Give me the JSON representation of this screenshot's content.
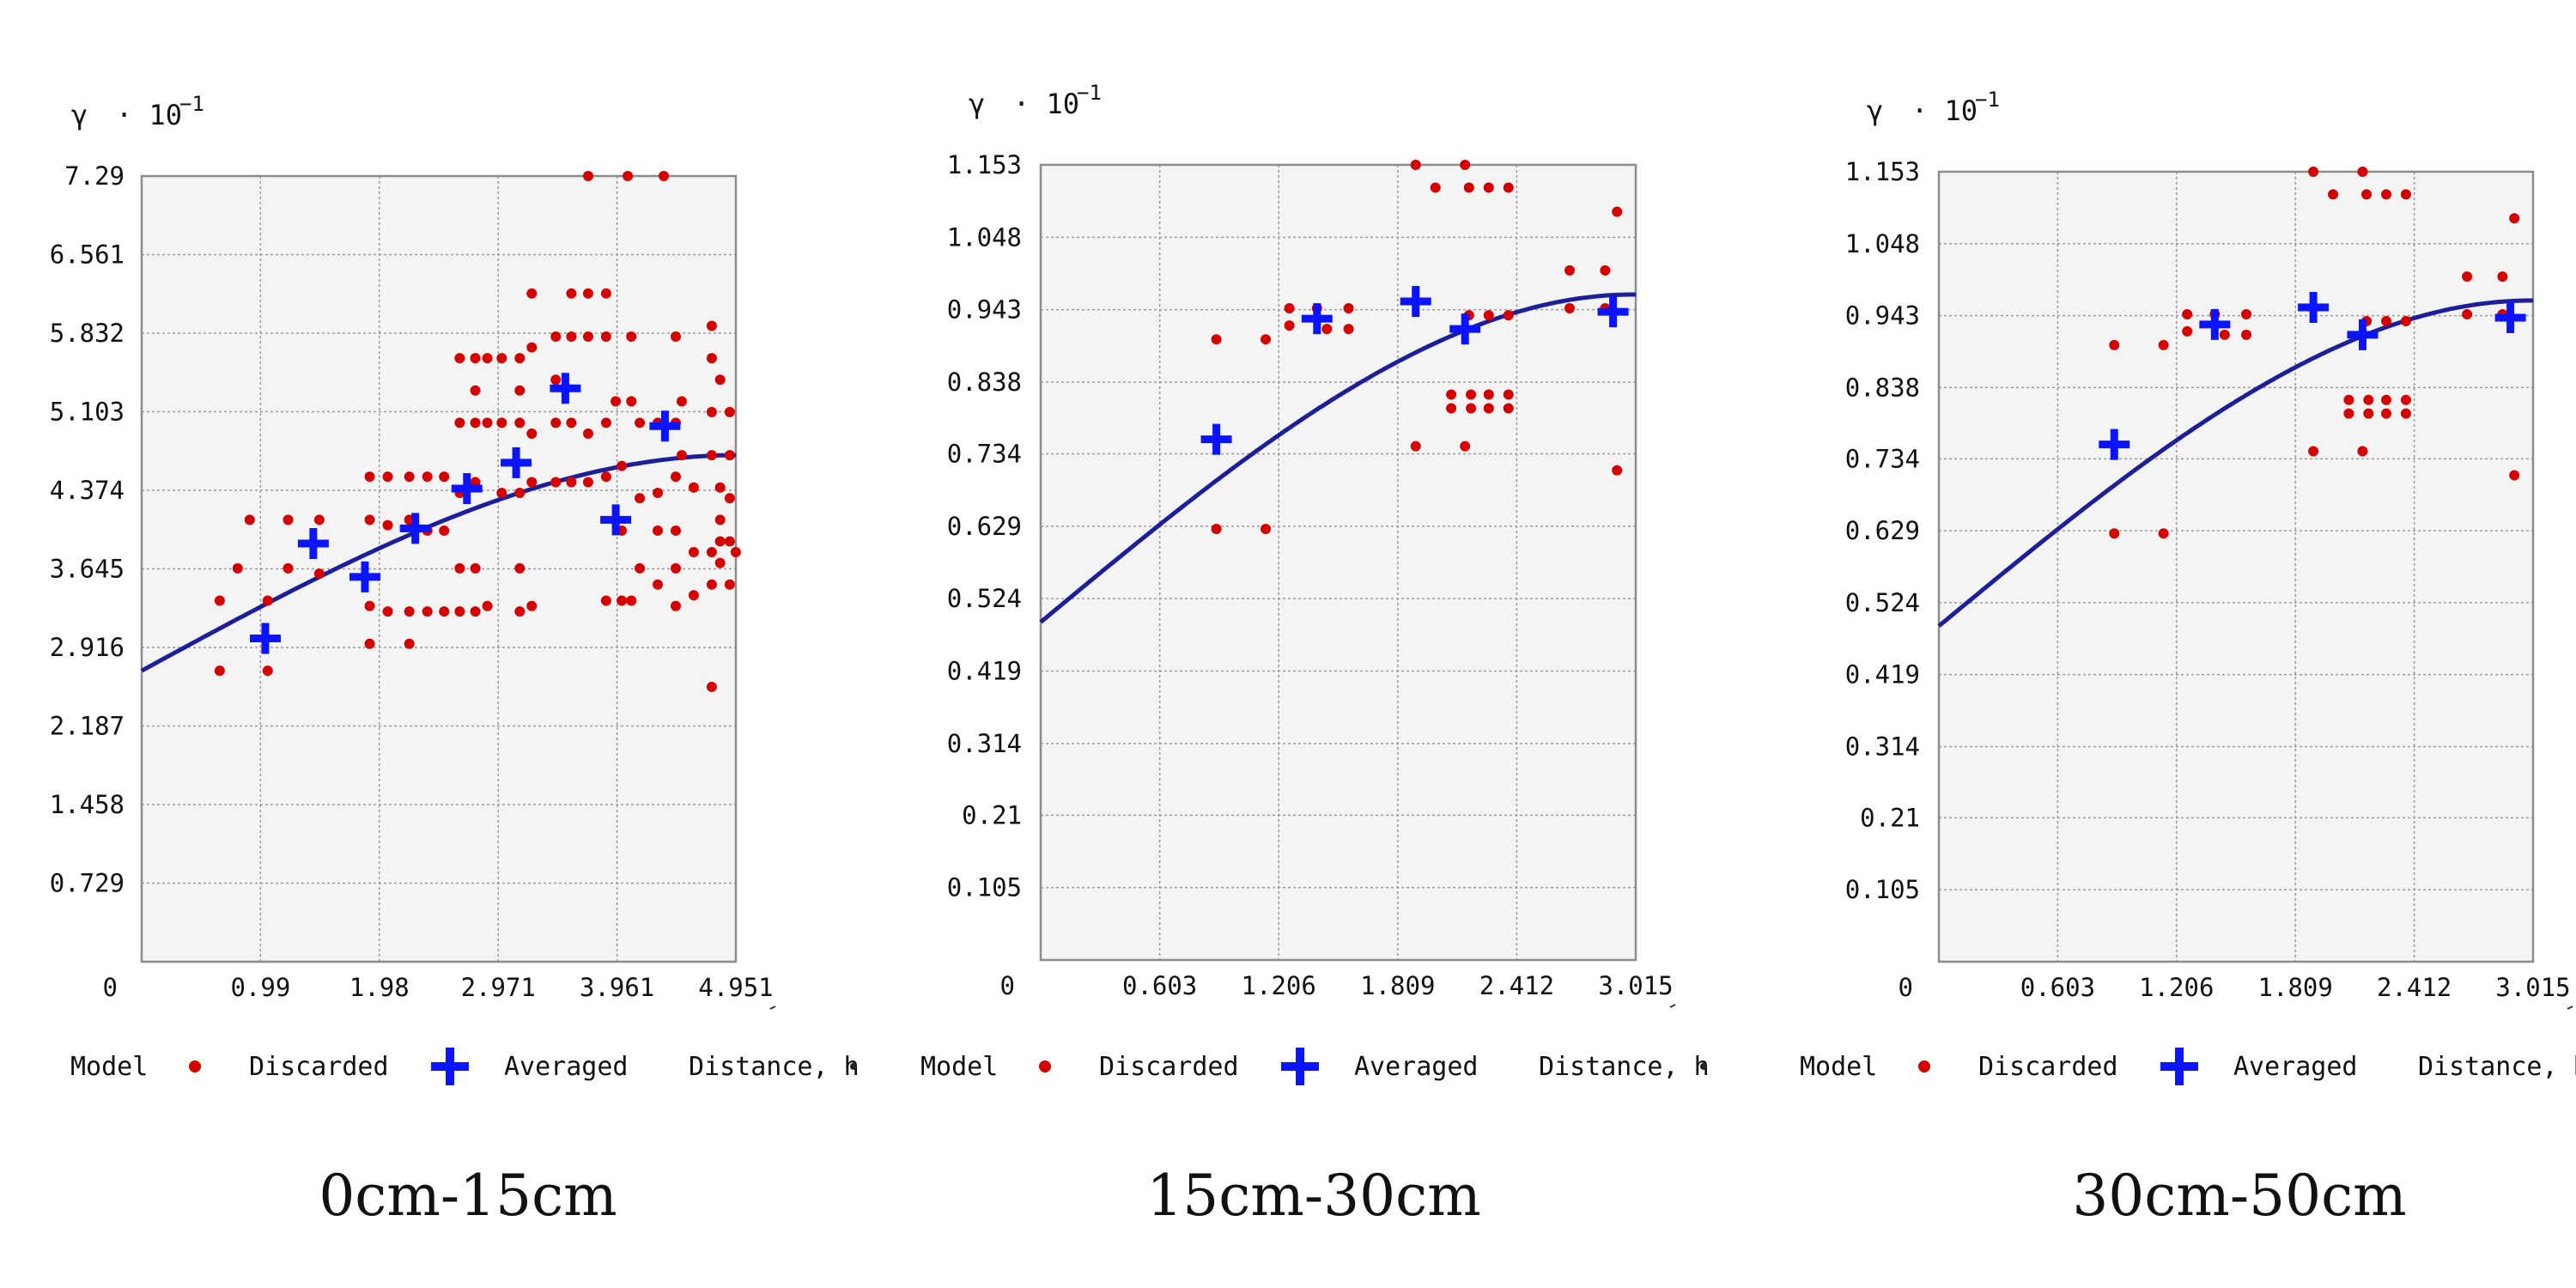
{
  "colors": {
    "model": "#1c1f99",
    "discarded": "#d40000",
    "averaged": "#0a14ff",
    "plot_bg": "#f4f4f4",
    "grid": "#9a9a9a",
    "frame": "#8c8c8c"
  },
  "legend": {
    "model": "Model",
    "discarded": "Discarded",
    "averaged": "Averaged",
    "xaxis": "Distance, h"
  },
  "chart_data": [
    {
      "type": "scatter",
      "caption": "0cm-15cm",
      "ylabel": "γ",
      "yscale_label": "· 10",
      "yscale_exp": "−1",
      "xlabel": "Distance, h",
      "origin_label": "0",
      "xlim": [
        0,
        4.951
      ],
      "ylim": [
        0,
        7.29
      ],
      "xticks": [
        0.99,
        1.98,
        2.971,
        3.961,
        4.951
      ],
      "xtick_labels": [
        "0.99",
        "1.98",
        "2.971",
        "3.961",
        "4.951"
      ],
      "yticks": [
        0.729,
        1.458,
        2.187,
        2.916,
        3.645,
        4.374,
        5.103,
        5.832,
        6.561,
        7.29
      ],
      "ytick_labels": [
        "0.729",
        "1.458",
        "2.187",
        "2.916",
        "3.645",
        "4.374",
        "5.103",
        "5.832",
        "6.561",
        "7.29"
      ],
      "grid": true,
      "legend_position": "bottom",
      "model": {
        "nugget": 2.7,
        "sill": 4.7,
        "range": 4.95
      },
      "averaged": [
        [
          1.03,
          3.0
        ],
        [
          1.43,
          3.88
        ],
        [
          1.86,
          3.57
        ],
        [
          2.28,
          4.02
        ],
        [
          2.71,
          4.39
        ],
        [
          3.12,
          4.63
        ],
        [
          3.53,
          5.32
        ],
        [
          3.95,
          4.1
        ],
        [
          4.36,
          4.97
        ]
      ],
      "discarded": [
        [
          0.65,
          3.35
        ],
        [
          0.8,
          3.65
        ],
        [
          0.9,
          4.1
        ],
        [
          0.65,
          2.7
        ],
        [
          1.05,
          3.35
        ],
        [
          1.05,
          2.7
        ],
        [
          1.22,
          3.65
        ],
        [
          1.22,
          4.1
        ],
        [
          1.48,
          4.1
        ],
        [
          1.48,
          3.6
        ],
        [
          1.9,
          4.5
        ],
        [
          1.9,
          4.1
        ],
        [
          1.9,
          3.3
        ],
        [
          1.9,
          2.95
        ],
        [
          2.05,
          4.5
        ],
        [
          2.05,
          4.05
        ],
        [
          2.05,
          3.25
        ],
        [
          2.23,
          4.5
        ],
        [
          2.23,
          4.1
        ],
        [
          2.23,
          3.25
        ],
        [
          2.23,
          2.95
        ],
        [
          2.38,
          4.5
        ],
        [
          2.38,
          4.0
        ],
        [
          2.38,
          3.25
        ],
        [
          2.52,
          4.5
        ],
        [
          2.52,
          4.0
        ],
        [
          2.52,
          3.25
        ],
        [
          2.65,
          5.6
        ],
        [
          2.65,
          5.0
        ],
        [
          2.65,
          4.35
        ],
        [
          2.65,
          3.65
        ],
        [
          2.65,
          3.25
        ],
        [
          2.78,
          5.6
        ],
        [
          2.78,
          5.3
        ],
        [
          2.78,
          5.0
        ],
        [
          2.78,
          4.45
        ],
        [
          2.78,
          3.65
        ],
        [
          2.78,
          3.25
        ],
        [
          2.88,
          5.6
        ],
        [
          2.88,
          5.0
        ],
        [
          2.88,
          3.3
        ],
        [
          3.0,
          5.6
        ],
        [
          3.0,
          5.0
        ],
        [
          3.0,
          4.35
        ],
        [
          3.15,
          5.6
        ],
        [
          3.15,
          5.3
        ],
        [
          3.15,
          5.0
        ],
        [
          3.15,
          4.35
        ],
        [
          3.15,
          3.65
        ],
        [
          3.15,
          3.25
        ],
        [
          3.25,
          6.2
        ],
        [
          3.25,
          5.7
        ],
        [
          3.25,
          4.9
        ],
        [
          3.25,
          4.45
        ],
        [
          3.25,
          3.3
        ],
        [
          3.45,
          5.8
        ],
        [
          3.45,
          5.4
        ],
        [
          3.45,
          5.0
        ],
        [
          3.45,
          4.45
        ],
        [
          3.58,
          6.2
        ],
        [
          3.58,
          5.8
        ],
        [
          3.58,
          5.0
        ],
        [
          3.58,
          4.45
        ],
        [
          3.72,
          6.2
        ],
        [
          3.72,
          5.8
        ],
        [
          3.72,
          4.9
        ],
        [
          3.72,
          4.45
        ],
        [
          3.72,
          7.29
        ],
        [
          3.87,
          6.2
        ],
        [
          3.87,
          5.8
        ],
        [
          3.87,
          5.0
        ],
        [
          3.87,
          4.5
        ],
        [
          3.87,
          3.35
        ],
        [
          3.95,
          5.2
        ],
        [
          4.0,
          4.6
        ],
        [
          4.0,
          4.0
        ],
        [
          4.0,
          3.35
        ],
        [
          4.08,
          5.8
        ],
        [
          4.08,
          5.2
        ],
        [
          4.08,
          3.35
        ],
        [
          4.15,
          5.0
        ],
        [
          4.15,
          4.3
        ],
        [
          4.15,
          3.65
        ],
        [
          4.05,
          7.29
        ],
        [
          4.3,
          5.0
        ],
        [
          4.3,
          4.35
        ],
        [
          4.3,
          4.0
        ],
        [
          4.3,
          3.5
        ],
        [
          4.35,
          7.29
        ],
        [
          4.45,
          5.8
        ],
        [
          4.45,
          5.0
        ],
        [
          4.45,
          4.5
        ],
        [
          4.45,
          4.0
        ],
        [
          4.45,
          3.65
        ],
        [
          4.45,
          3.3
        ],
        [
          4.5,
          5.2
        ],
        [
          4.5,
          4.7
        ],
        [
          4.6,
          4.4
        ],
        [
          4.6,
          3.8
        ],
        [
          4.6,
          3.4
        ],
        [
          4.75,
          5.9
        ],
        [
          4.75,
          5.6
        ],
        [
          4.75,
          5.1
        ],
        [
          4.75,
          4.7
        ],
        [
          4.75,
          3.8
        ],
        [
          4.75,
          3.5
        ],
        [
          4.75,
          2.55
        ],
        [
          4.82,
          5.4
        ],
        [
          4.82,
          4.4
        ],
        [
          4.82,
          4.1
        ],
        [
          4.82,
          3.9
        ],
        [
          4.82,
          3.7
        ],
        [
          4.9,
          5.1
        ],
        [
          4.9,
          4.7
        ],
        [
          4.9,
          4.3
        ],
        [
          4.9,
          3.9
        ],
        [
          4.9,
          3.5
        ],
        [
          4.95,
          3.8
        ]
      ]
    },
    {
      "type": "scatter",
      "caption": "15cm-30cm",
      "ylabel": "γ",
      "yscale_label": "· 10",
      "yscale_exp": "−1",
      "xlabel": "Distance, h",
      "origin_label": "0",
      "xlim": [
        0,
        3.015
      ],
      "ylim": [
        0,
        1.153
      ],
      "xticks": [
        0.603,
        1.206,
        1.809,
        2.412,
        3.015
      ],
      "xtick_labels": [
        "0.603",
        "1.206",
        "1.809",
        "2.412",
        "3.015"
      ],
      "yticks": [
        0.105,
        0.21,
        0.314,
        0.419,
        0.524,
        0.629,
        0.734,
        0.838,
        0.943,
        1.048,
        1.153
      ],
      "ytick_labels": [
        "0.105",
        "0.21",
        "0.314",
        "0.419",
        "0.524",
        "0.629",
        "0.734",
        "0.838",
        "0.943",
        "1.048",
        "1.153"
      ],
      "grid": true,
      "legend_position": "bottom",
      "model": {
        "nugget": 0.49,
        "sill": 0.965,
        "range": 3.0
      },
      "averaged": [
        [
          0.89,
          0.755
        ],
        [
          1.4,
          0.93
        ],
        [
          1.9,
          0.955
        ],
        [
          2.15,
          0.915
        ],
        [
          2.9,
          0.94
        ]
      ],
      "discarded": [
        [
          0.89,
          0.9
        ],
        [
          0.89,
          0.625
        ],
        [
          1.14,
          0.9
        ],
        [
          1.14,
          0.625
        ],
        [
          1.26,
          0.945
        ],
        [
          1.26,
          0.92
        ],
        [
          1.4,
          0.945
        ],
        [
          1.45,
          0.915
        ],
        [
          1.56,
          0.945
        ],
        [
          1.56,
          0.915
        ],
        [
          1.9,
          1.153
        ],
        [
          1.9,
          0.745
        ],
        [
          2.0,
          1.12
        ],
        [
          2.08,
          0.82
        ],
        [
          2.08,
          0.8
        ],
        [
          2.15,
          1.153
        ],
        [
          2.15,
          0.745
        ],
        [
          2.17,
          1.12
        ],
        [
          2.17,
          0.935
        ],
        [
          2.18,
          0.82
        ],
        [
          2.18,
          0.8
        ],
        [
          2.27,
          1.12
        ],
        [
          2.27,
          0.935
        ],
        [
          2.27,
          0.82
        ],
        [
          2.27,
          0.8
        ],
        [
          2.37,
          1.12
        ],
        [
          2.37,
          0.935
        ],
        [
          2.37,
          0.82
        ],
        [
          2.37,
          0.8
        ],
        [
          2.68,
          1.0
        ],
        [
          2.68,
          0.945
        ],
        [
          2.86,
          1.0
        ],
        [
          2.86,
          0.945
        ],
        [
          2.92,
          1.085
        ],
        [
          2.92,
          0.71
        ]
      ]
    },
    {
      "type": "scatter",
      "caption": "30cm-50cm",
      "ylabel": "γ",
      "yscale_label": "· 10",
      "yscale_exp": "−1",
      "xlabel": "Distance, h",
      "origin_label": "0",
      "xlim": [
        0,
        3.015
      ],
      "ylim": [
        0,
        1.153
      ],
      "xticks": [
        0.603,
        1.206,
        1.809,
        2.412,
        3.015
      ],
      "xtick_labels": [
        "0.603",
        "1.206",
        "1.809",
        "2.412",
        "3.015"
      ],
      "yticks": [
        0.105,
        0.21,
        0.314,
        0.419,
        0.524,
        0.629,
        0.734,
        0.838,
        0.943,
        1.048,
        1.153
      ],
      "ytick_labels": [
        "0.105",
        "0.21",
        "0.314",
        "0.419",
        "0.524",
        "0.629",
        "0.734",
        "0.838",
        "0.943",
        "1.048",
        "1.153"
      ],
      "grid": true,
      "legend_position": "bottom",
      "model": {
        "nugget": 0.49,
        "sill": 0.965,
        "range": 3.0
      },
      "averaged": [
        [
          0.89,
          0.755
        ],
        [
          1.4,
          0.93
        ],
        [
          1.9,
          0.955
        ],
        [
          2.15,
          0.915
        ],
        [
          2.9,
          0.94
        ]
      ],
      "discarded": [
        [
          0.89,
          0.9
        ],
        [
          0.89,
          0.625
        ],
        [
          1.14,
          0.9
        ],
        [
          1.14,
          0.625
        ],
        [
          1.26,
          0.945
        ],
        [
          1.26,
          0.92
        ],
        [
          1.4,
          0.945
        ],
        [
          1.45,
          0.915
        ],
        [
          1.56,
          0.945
        ],
        [
          1.56,
          0.915
        ],
        [
          1.9,
          1.153
        ],
        [
          1.9,
          0.745
        ],
        [
          2.0,
          1.12
        ],
        [
          2.08,
          0.82
        ],
        [
          2.08,
          0.8
        ],
        [
          2.15,
          1.153
        ],
        [
          2.15,
          0.745
        ],
        [
          2.17,
          1.12
        ],
        [
          2.17,
          0.935
        ],
        [
          2.18,
          0.82
        ],
        [
          2.18,
          0.8
        ],
        [
          2.27,
          1.12
        ],
        [
          2.27,
          0.935
        ],
        [
          2.27,
          0.82
        ],
        [
          2.27,
          0.8
        ],
        [
          2.37,
          1.12
        ],
        [
          2.37,
          0.935
        ],
        [
          2.37,
          0.82
        ],
        [
          2.37,
          0.8
        ],
        [
          2.68,
          1.0
        ],
        [
          2.68,
          0.945
        ],
        [
          2.86,
          1.0
        ],
        [
          2.86,
          0.945
        ],
        [
          2.92,
          1.085
        ],
        [
          2.92,
          0.71
        ]
      ]
    }
  ]
}
